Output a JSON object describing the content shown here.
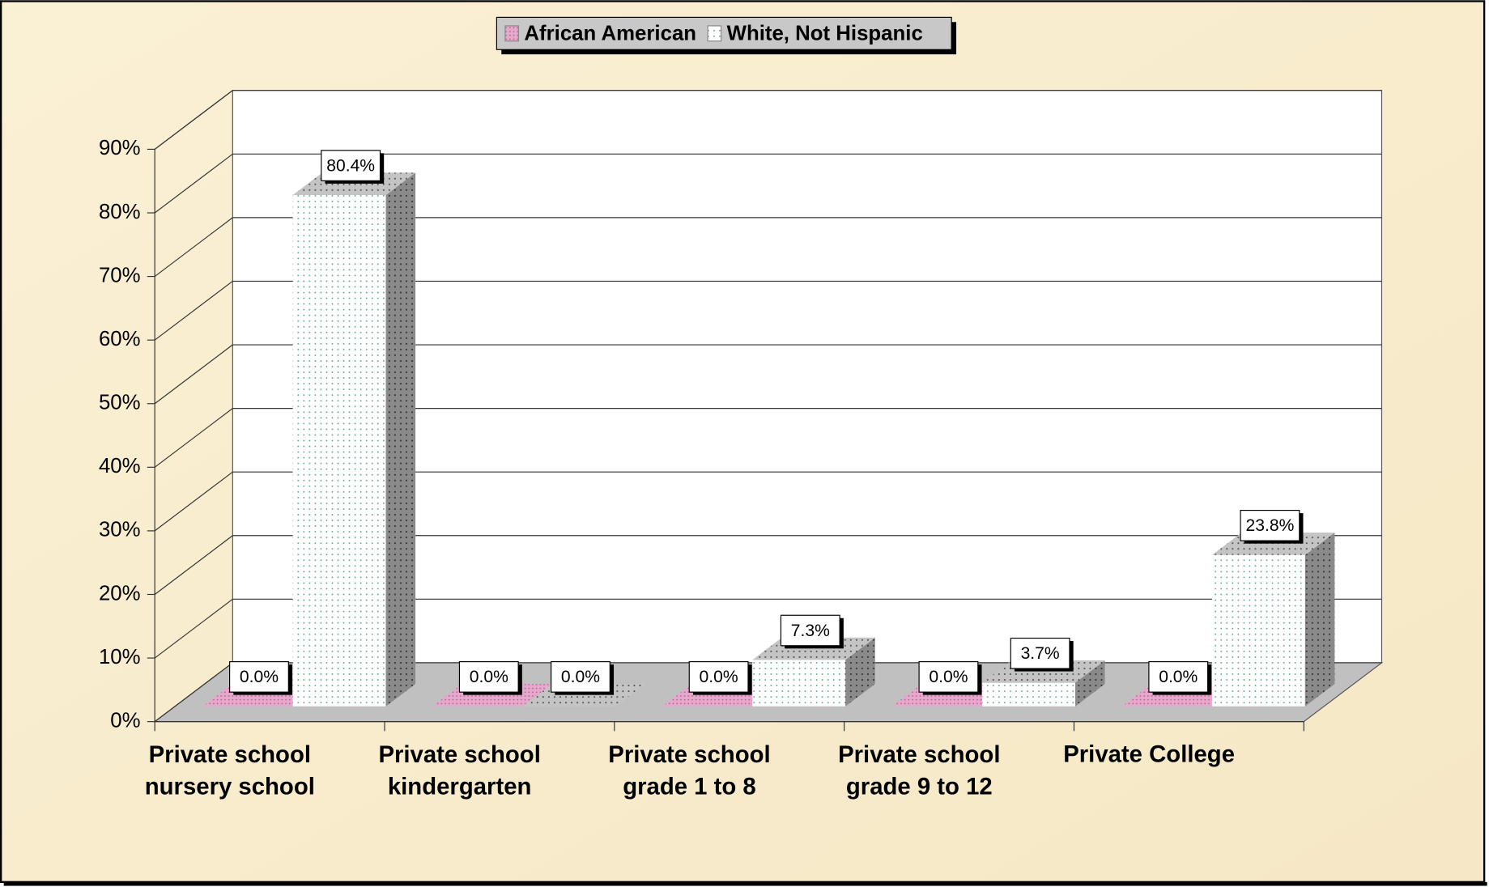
{
  "chart_data": {
    "type": "bar3d",
    "categories": [
      "Private school nursery school",
      "Private school kindergarten",
      "Private school grade 1 to 8",
      "Private school grade 9 to 12",
      "Private College"
    ],
    "series": [
      {
        "name": "African American",
        "color": "#e6a8cc",
        "values": [
          0,
          0,
          0,
          0,
          0
        ],
        "value_labels": [
          "0.0%",
          "0.0%",
          "0.0%",
          "0.0%",
          "0.0%"
        ]
      },
      {
        "name": "White, Not Hispanic",
        "color": "#ffffff",
        "values": [
          80.4,
          0,
          7.3,
          3.7,
          23.8
        ],
        "value_labels": [
          "80.4%",
          "0.0%",
          "7.3%",
          "3.7%",
          "23.8%"
        ]
      }
    ],
    "ylim": [
      0,
      90
    ],
    "yticks": [
      {
        "value": 0,
        "label": "0%"
      },
      {
        "value": 10,
        "label": "10%"
      },
      {
        "value": 20,
        "label": "20%"
      },
      {
        "value": 30,
        "label": "30%"
      },
      {
        "value": 40,
        "label": "40%"
      },
      {
        "value": 50,
        "label": "50%"
      },
      {
        "value": 60,
        "label": "60%"
      },
      {
        "value": 70,
        "label": "70%"
      },
      {
        "value": 80,
        "label": "80%"
      },
      {
        "value": 90,
        "label": "90%"
      }
    ],
    "grid": true,
    "legend": "top"
  }
}
